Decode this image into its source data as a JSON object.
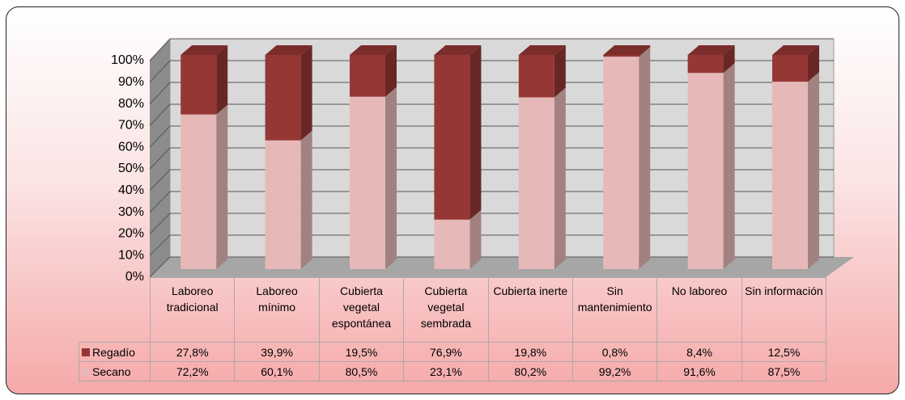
{
  "chart_data": {
    "type": "bar",
    "stacked": true,
    "categories": [
      "Laboreo tradicional",
      "Laboreo mínimo",
      "Cubierta vegetal espontánea",
      "Cubierta vegetal sembrada",
      "Cubierta inerte",
      "Sin mantenimiento",
      "No laboreo",
      "Sin información"
    ],
    "series": [
      {
        "name": "Secano",
        "color": "#e6b9b8",
        "values": [
          72.2,
          60.1,
          80.5,
          23.1,
          80.2,
          99.2,
          91.6,
          87.5
        ],
        "value_labels": [
          "72,2%",
          "60,1%",
          "80,5%",
          "23,1%",
          "80,2%",
          "99,2%",
          "91,6%",
          "87,5%"
        ]
      },
      {
        "name": "Regadío",
        "color": "#953735",
        "values": [
          27.8,
          39.9,
          19.5,
          76.9,
          19.8,
          0.8,
          8.4,
          12.5
        ],
        "value_labels": [
          "27,8%",
          "39,9%",
          "19,5%",
          "76,9%",
          "19,8%",
          "0,8%",
          "8,4%",
          "12,5%"
        ]
      }
    ],
    "ylim": [
      0,
      100
    ],
    "yticks": [
      {
        "value": 0,
        "label": "0%"
      },
      {
        "value": 10,
        "label": "10%"
      },
      {
        "value": 20,
        "label": "20%"
      },
      {
        "value": 30,
        "label": "30%"
      },
      {
        "value": 40,
        "label": "40%"
      },
      {
        "value": 50,
        "label": "50%"
      },
      {
        "value": 60,
        "label": "60%"
      },
      {
        "value": 70,
        "label": "70%"
      },
      {
        "value": 80,
        "label": "80%"
      },
      {
        "value": 90,
        "label": "90%"
      },
      {
        "value": 100,
        "label": "100%"
      }
    ],
    "grid": true
  }
}
